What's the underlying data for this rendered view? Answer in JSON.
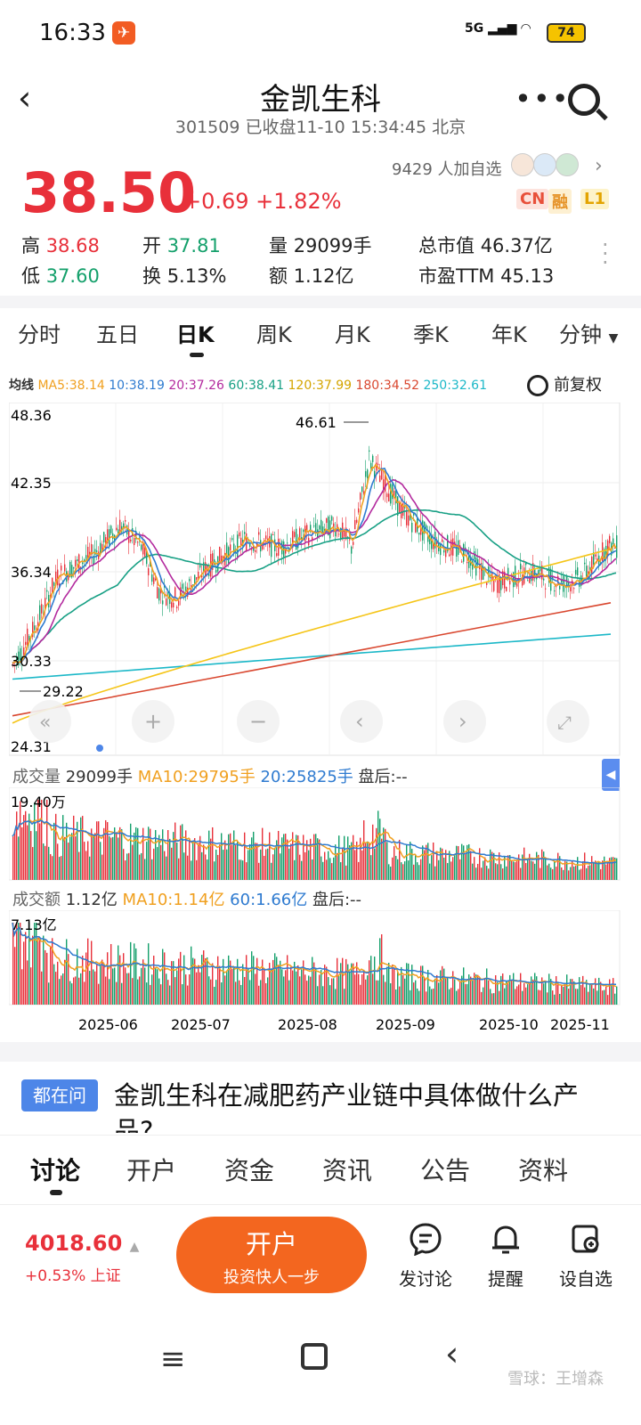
{
  "status": {
    "time": "16:33",
    "network": "5G",
    "battery": "74"
  },
  "header": {
    "title": "金凯生科",
    "subtitle": "301509 已收盘11-10 15:34:45 北京"
  },
  "quote": {
    "price": "38.50",
    "change": "+0.69 +1.82%",
    "watch_count": "9429 人加自选",
    "badges": [
      "CN",
      "融",
      "L1"
    ],
    "high_label": "高",
    "high": "38.68",
    "low_label": "低",
    "low": "37.60",
    "open_label": "开",
    "open": "37.81",
    "turnover_label": "换",
    "turnover": "5.13%",
    "volume_label": "量",
    "volume": "29099手",
    "amount_label": "额",
    "amount": "1.12亿",
    "mktcap_label": "总市值",
    "mktcap": "46.37亿",
    "pe_label": "市盈TTM",
    "pe": "45.13"
  },
  "chart_tabs": [
    "分时",
    "五日",
    "日K",
    "周K",
    "月K",
    "季K",
    "年K",
    "分钟"
  ],
  "ma_legend": {
    "label": "均线",
    "ma5": "MA5:38.14",
    "ma10": "10:38.19",
    "ma20": "20:37.26",
    "ma60": "60:38.41",
    "ma120": "120:37.99",
    "ma180": "180:34.52",
    "ma250": "250:32.61",
    "adjust": "前复权"
  },
  "colors": {
    "up": "#e8303a",
    "down": "#14a06b",
    "ma5": "#f0a020",
    "ma10": "#2f7bd0",
    "ma20": "#b32a9e",
    "ma60": "#18a085",
    "ma120": "#f5c518",
    "ma180": "#d9472f",
    "ma250": "#1cb8c8"
  },
  "chart_data": {
    "type": "candlestick",
    "y_ticks": [
      "48.36",
      "42.35",
      "36.34",
      "30.33",
      "24.31"
    ],
    "ylim": [
      24.31,
      48.36
    ],
    "max_marker": "46.61",
    "min_marker": "29.22",
    "x_labels": [
      "2025-06",
      "2025-07",
      "2025-08",
      "2025-09",
      "2025-10",
      "2025-11"
    ]
  },
  "volume": {
    "label": "成交量",
    "value": "29099手",
    "ma10": "MA10:29795手",
    "ma20": "20:25825手",
    "after": "盘后:--",
    "max": "19.40万"
  },
  "amount": {
    "label": "成交额",
    "value": "1.12亿",
    "ma10": "MA10:1.14亿",
    "ma60": "60:1.66亿",
    "after": "盘后:--",
    "max": "7.13亿"
  },
  "question": {
    "badge": "都在问",
    "text": "金凯生科在减肥药产业链中具体做什么产品?"
  },
  "bottom_tabs": [
    "讨论",
    "开户",
    "资金",
    "资讯",
    "公告",
    "资料"
  ],
  "footer": {
    "index_value": "4018.60",
    "index_change": "+0.53% 上证",
    "open_title": "开户",
    "open_sub": "投资快人一步",
    "actions": [
      {
        "icon": "chat-icon",
        "label": "发讨论"
      },
      {
        "icon": "bell-icon",
        "label": "提醒"
      },
      {
        "icon": "add-watch-icon",
        "label": "设自选"
      }
    ]
  },
  "watermark": "雪球：王增森"
}
